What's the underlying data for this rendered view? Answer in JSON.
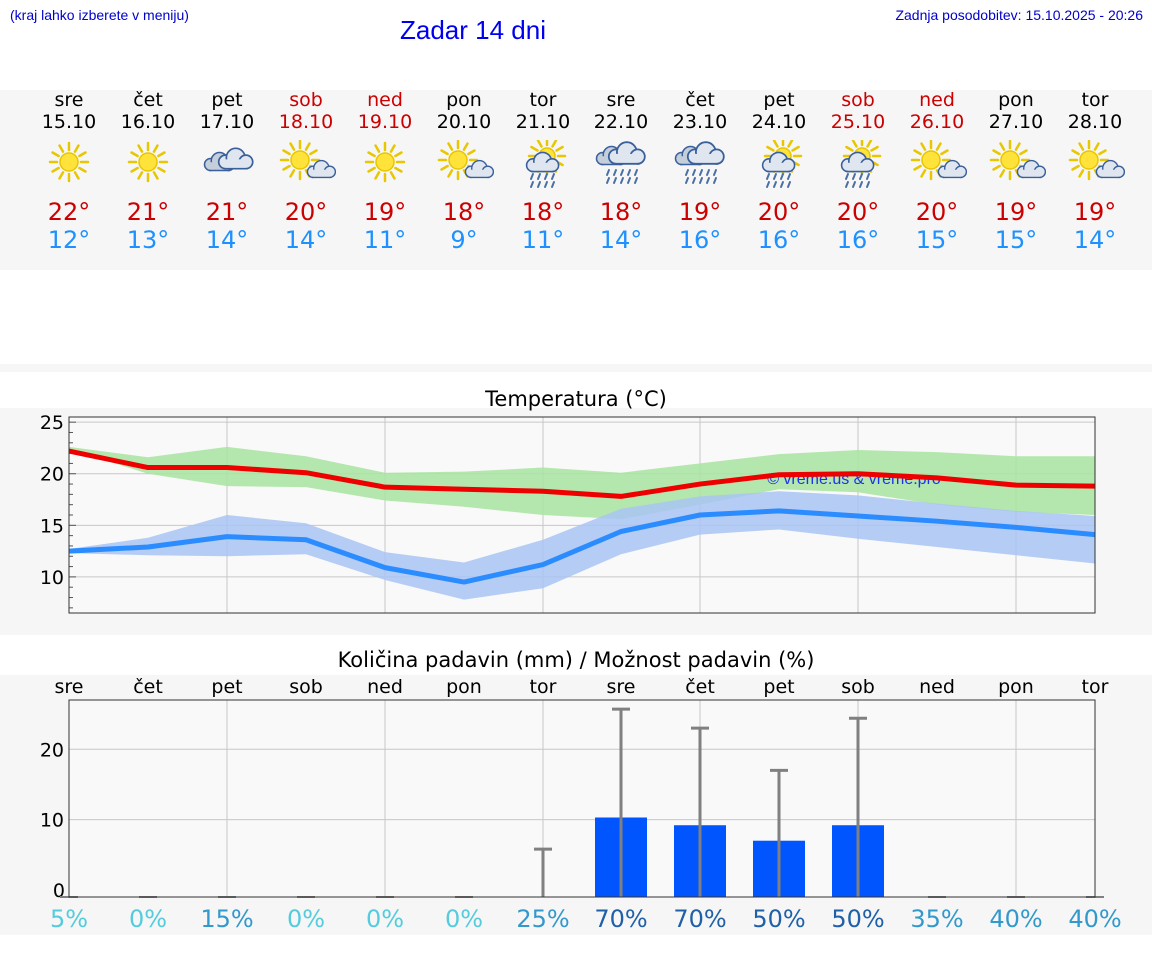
{
  "header": {
    "hint": "(kraj lahko izberete v meniju)",
    "title": "Zadar 14 dni",
    "updated": "Zadnja posodobitev: 15.10.2025 - 20:26"
  },
  "colors": {
    "link_blue": "#0000cc",
    "max_temp": "#cc0000",
    "min_temp": "#1e90ff",
    "max_line": "#ee0000",
    "min_line": "#2a8cff",
    "max_range": "#a8e4a0",
    "min_range": "#a9c4f5",
    "bar": "#0055ff",
    "error": "#808080",
    "weekend": "#cc0000"
  },
  "days": [
    {
      "day": "sre",
      "date": "15.10",
      "icon": "sun-icon",
      "tmax": "22°",
      "tmin": "12°",
      "weekend": false
    },
    {
      "day": "čet",
      "date": "16.10",
      "icon": "sun-icon",
      "tmax": "21°",
      "tmin": "13°",
      "weekend": false
    },
    {
      "day": "pet",
      "date": "17.10",
      "icon": "cloudy-icon",
      "tmax": "21°",
      "tmin": "14°",
      "weekend": false
    },
    {
      "day": "sob",
      "date": "18.10",
      "icon": "sun-cloud-icon",
      "tmax": "20°",
      "tmin": "14°",
      "weekend": true
    },
    {
      "day": "ned",
      "date": "19.10",
      "icon": "sun-icon",
      "tmax": "19°",
      "tmin": "11°",
      "weekend": true
    },
    {
      "day": "pon",
      "date": "20.10",
      "icon": "sun-cloud-icon",
      "tmax": "18°",
      "tmin": "9°",
      "weekend": false
    },
    {
      "day": "tor",
      "date": "21.10",
      "icon": "sun-rain-icon",
      "tmax": "18°",
      "tmin": "11°",
      "weekend": false
    },
    {
      "day": "sre",
      "date": "22.10",
      "icon": "rain-icon",
      "tmax": "18°",
      "tmin": "14°",
      "weekend": false
    },
    {
      "day": "čet",
      "date": "23.10",
      "icon": "rain-icon",
      "tmax": "19°",
      "tmin": "16°",
      "weekend": false
    },
    {
      "day": "pet",
      "date": "24.10",
      "icon": "sun-rain-icon",
      "tmax": "20°",
      "tmin": "16°",
      "weekend": false
    },
    {
      "day": "sob",
      "date": "25.10",
      "icon": "sun-rain-icon",
      "tmax": "20°",
      "tmin": "16°",
      "weekend": true
    },
    {
      "day": "ned",
      "date": "26.10",
      "icon": "sun-cloud-icon",
      "tmax": "20°",
      "tmin": "15°",
      "weekend": true
    },
    {
      "day": "pon",
      "date": "27.10",
      "icon": "sun-cloud-icon",
      "tmax": "19°",
      "tmin": "15°",
      "weekend": false
    },
    {
      "day": "tor",
      "date": "28.10",
      "icon": "sun-cloud-icon",
      "tmax": "19°",
      "tmin": "14°",
      "weekend": false
    }
  ],
  "chart_data": [
    {
      "type": "line",
      "title": "Temperatura (°C)",
      "ylim": [
        6.5,
        25.5
      ],
      "yticks": [
        10,
        15,
        20,
        25
      ],
      "grid": true,
      "x": [
        0,
        1,
        2,
        3,
        4,
        5,
        6,
        7,
        8,
        9,
        10,
        11,
        12,
        13
      ],
      "watermark": "© vreme.us & vreme.pro",
      "series": [
        {
          "role": "max",
          "values": [
            22.2,
            20.6,
            20.6,
            20.1,
            18.7,
            18.5,
            18.3,
            17.8,
            19.0,
            19.9,
            20.0,
            19.6,
            18.9,
            18.8
          ]
        },
        {
          "role": "min",
          "values": [
            12.5,
            12.9,
            13.9,
            13.6,
            10.9,
            9.5,
            11.2,
            14.4,
            16.0,
            16.4,
            15.9,
            15.4,
            14.8,
            14.1
          ]
        },
        {
          "role": "max-range",
          "low": [
            22.4,
            20.0,
            18.8,
            18.7,
            17.4,
            16.8,
            16.0,
            15.6,
            17.0,
            18.5,
            18.2,
            17.0,
            16.3,
            16.0
          ],
          "high": [
            22.6,
            21.6,
            22.6,
            21.7,
            20.1,
            20.2,
            20.6,
            20.1,
            21.0,
            21.9,
            22.3,
            22.1,
            21.7,
            21.7
          ]
        },
        {
          "role": "min-range",
          "low": [
            12.3,
            12.1,
            12.0,
            12.2,
            9.7,
            7.8,
            8.9,
            12.2,
            14.1,
            14.6,
            13.7,
            12.9,
            12.1,
            11.3
          ],
          "high": [
            12.7,
            13.8,
            16.0,
            15.2,
            12.4,
            11.4,
            13.6,
            16.6,
            17.8,
            18.3,
            17.9,
            17.1,
            16.4,
            15.9
          ]
        }
      ]
    },
    {
      "type": "bar",
      "title": "Količina padavin (mm) / Možnost padavin (%)",
      "categories": [
        "sre",
        "čet",
        "pet",
        "sob",
        "ned",
        "pon",
        "tor",
        "sre",
        "čet",
        "pet",
        "sob",
        "ned",
        "pon",
        "tor"
      ],
      "ylim": [
        -1,
        27
      ],
      "yticks": [
        0,
        10,
        20
      ],
      "grid": true,
      "values": [
        0,
        0,
        0,
        0,
        0,
        0,
        0,
        10.3,
        9.2,
        7.0,
        9.2,
        0,
        0,
        0
      ],
      "error_high": [
        0,
        0,
        0,
        0,
        0,
        0,
        5.8,
        25.7,
        23.0,
        17.0,
        24.4,
        0,
        0,
        0
      ],
      "chance": [
        "5%",
        "0%",
        "15%",
        "0%",
        "0%",
        "0%",
        "25%",
        "70%",
        "70%",
        "50%",
        "50%",
        "35%",
        "40%",
        "40%"
      ],
      "chance_colors": [
        "#55ccdd",
        "#55ccdd",
        "#3399cc",
        "#55ccdd",
        "#55ccdd",
        "#55ccdd",
        "#3399cc",
        "#1f60a8",
        "#1f60a8",
        "#1f60a8",
        "#1f60a8",
        "#3399cc",
        "#3399cc",
        "#3399cc"
      ]
    }
  ]
}
